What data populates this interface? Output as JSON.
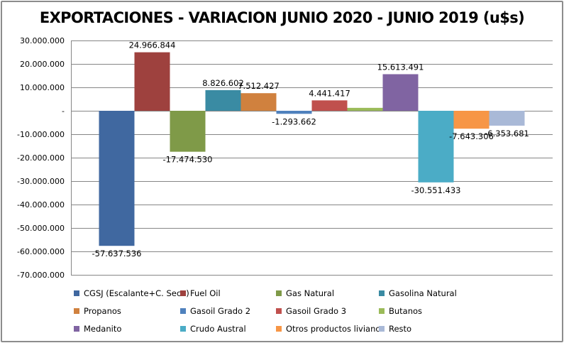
{
  "chart_data": {
    "type": "bar",
    "title": "EXPORTACIONES - VARIACION JUNIO 2020 - JUNIO 2019 (u$s)",
    "xlabel": "",
    "ylabel": "",
    "ylim": [
      -70000000,
      30000000
    ],
    "yticks": [
      30000000,
      20000000,
      10000000,
      0,
      -10000000,
      -20000000,
      -30000000,
      -40000000,
      -50000000,
      -60000000,
      -70000000
    ],
    "ytick_labels": [
      "30.000.000",
      "20.000.000",
      "10.000.000",
      "-",
      "-10.000.000",
      "-20.000.000",
      "-30.000.000",
      "-40.000.000",
      "-50.000.000",
      "-60.000.000",
      "-70.000.000"
    ],
    "grid": true,
    "legend_position": "bottom",
    "series": [
      {
        "name": "CGSJ (Escalante+C. Seco)",
        "value": -57637536,
        "label": "-57.637.536",
        "color": "#4068a0"
      },
      {
        "name": "Fuel Oil",
        "value": 24966844,
        "label": "24.966.844",
        "color": "#9e413e"
      },
      {
        "name": "Gas Natural",
        "value": -17474530,
        "label": "-17.474.530",
        "color": "#7f9a48"
      },
      {
        "name": "Gasolina Natural",
        "value": 8826602,
        "label": "8.826.602",
        "color": "#3a8ba3"
      },
      {
        "name": "Propanos",
        "value": 7512427,
        "label": "7.512.427",
        "color": "#d0813e"
      },
      {
        "name": "Gasoil Grado 2",
        "value": -1293662,
        "label": "-1.293.662",
        "color": "#4f81bd"
      },
      {
        "name": "Gasoil Grado 3",
        "value": 4441417,
        "label": "4.441.417",
        "color": "#c0504d"
      },
      {
        "name": "Butanos",
        "value": 1250000,
        "label": "",
        "color": "#9bbb59"
      },
      {
        "name": "Medanito",
        "value": 15613491,
        "label": "15.613.491",
        "color": "#8064a2"
      },
      {
        "name": "Crudo Austral",
        "value": -30551433,
        "label": "-30.551.433",
        "color": "#4bacc6"
      },
      {
        "name": "Otros productos livianos",
        "value": -7643306,
        "label": "-7.643.306",
        "color": "#f79646"
      },
      {
        "name": "Resto",
        "value": -6353681,
        "label": "-6.353.681",
        "color": "#a9b9d7"
      }
    ]
  }
}
